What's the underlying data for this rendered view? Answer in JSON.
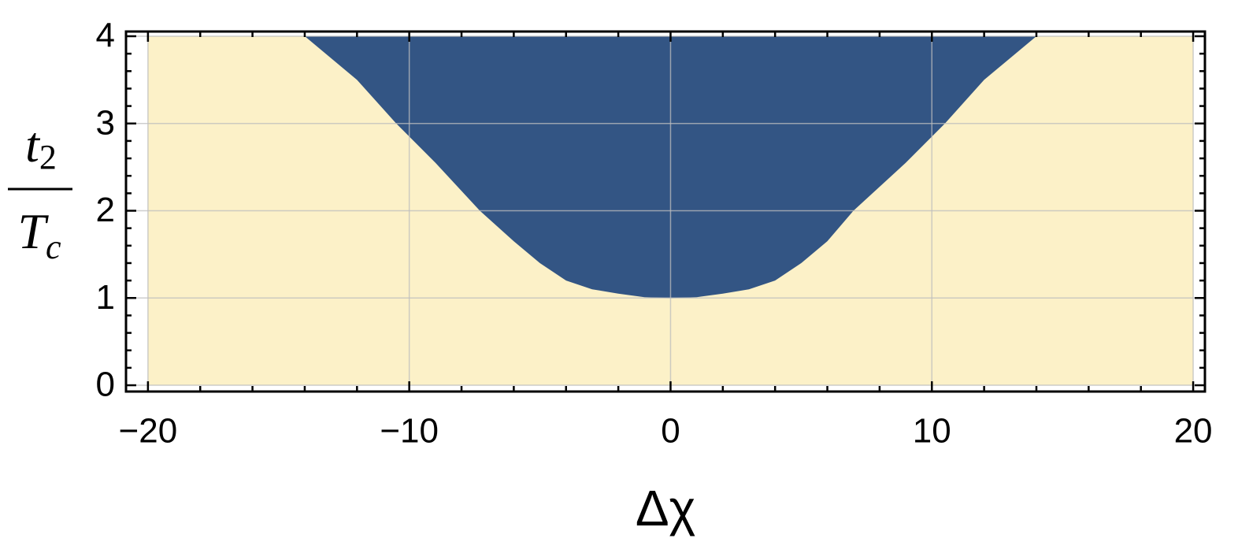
{
  "chart_data": {
    "type": "region",
    "xlabel": "Δχ",
    "ylabel": {
      "numerator": "t",
      "numerator_sub": "2",
      "denominator": "T",
      "denominator_sub": "c"
    },
    "x": [
      -14,
      -12,
      -10.5,
      -9,
      -7.3,
      -6,
      -5,
      -4,
      -3,
      -2,
      -1,
      0,
      1,
      2,
      3,
      4,
      5,
      6,
      7,
      9,
      10.5,
      12,
      14
    ],
    "values": [
      4,
      3.5,
      3,
      2.55,
      2,
      1.65,
      1.4,
      1.2,
      1.1,
      1.05,
      1.01,
      1,
      1.01,
      1.05,
      1.1,
      1.2,
      1.4,
      1.65,
      2,
      2.55,
      3,
      3.5,
      4
    ],
    "region_color": "#335584",
    "background_color": "#fcf1c8",
    "region_xlim": [
      -20,
      20
    ],
    "region_ylim": [
      0,
      4
    ],
    "xlim": [
      -20.84,
      20.45
    ],
    "ylim": [
      -0.072,
      4.054
    ],
    "xticks": [
      {
        "value": -20,
        "label": "−20"
      },
      {
        "value": -10,
        "label": "−10"
      },
      0,
      10,
      20
    ],
    "yticks": [
      0,
      1,
      2,
      3,
      4
    ],
    "xticks_minor": [
      -18,
      -16,
      -14,
      -12,
      -8,
      -6,
      -4,
      -2,
      2,
      4,
      6,
      8,
      12,
      14,
      16,
      18
    ],
    "yticks_minor": [
      0.2,
      0.4,
      0.6,
      0.8,
      1.2,
      1.4,
      1.6,
      1.8,
      2.2,
      2.4,
      2.6,
      2.8,
      3.2,
      3.4,
      3.6,
      3.8
    ],
    "grid": true
  }
}
